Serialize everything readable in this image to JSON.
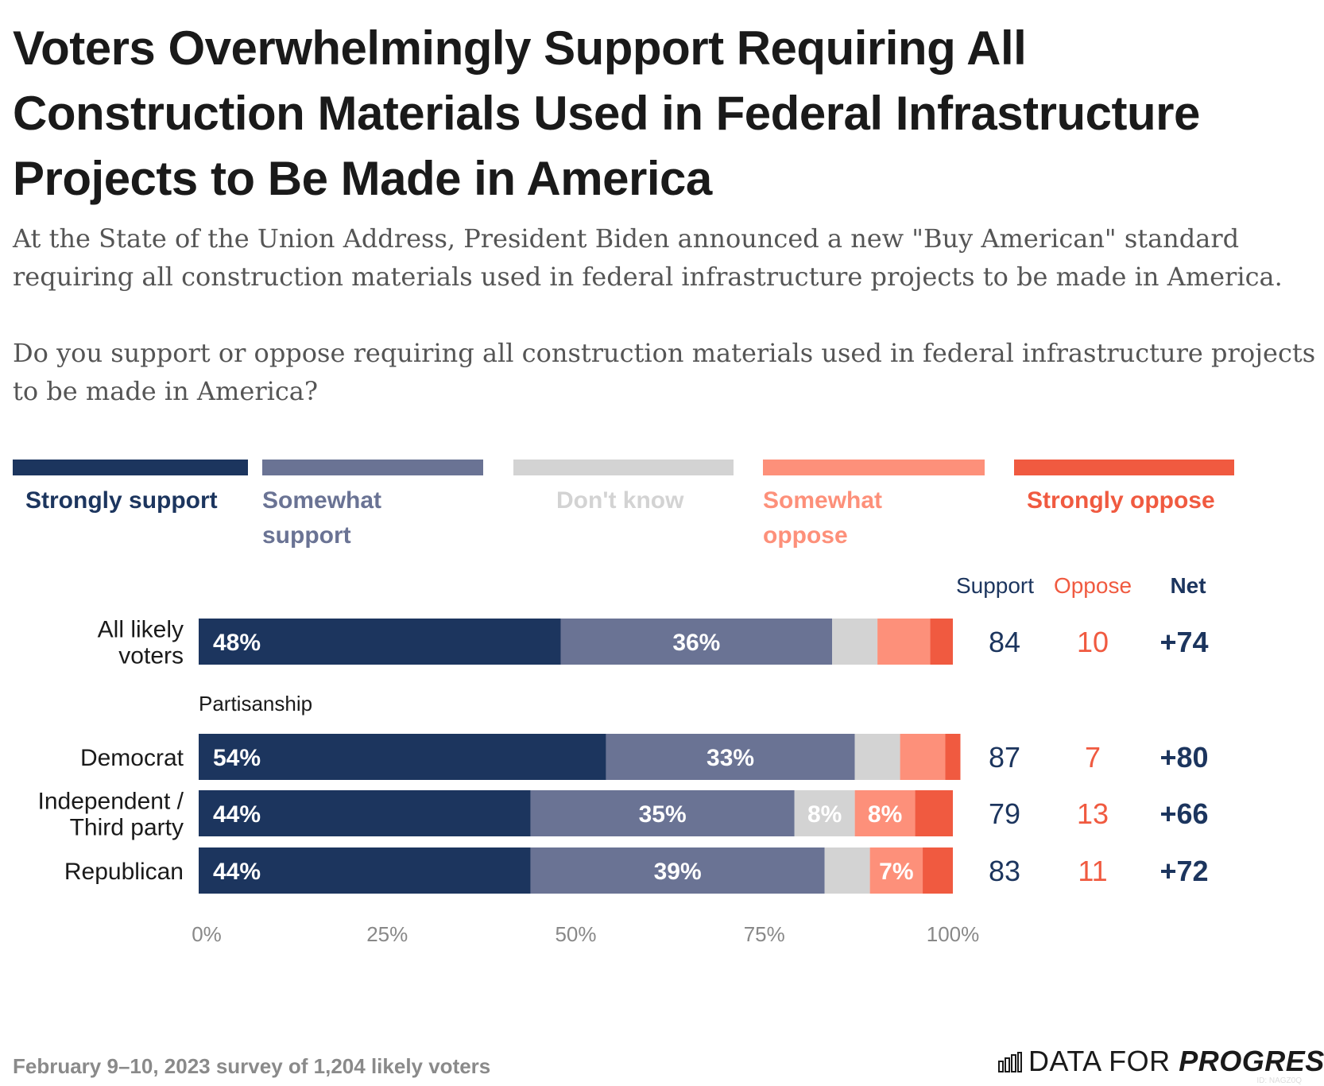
{
  "title": "Voters Overwhelmingly Support Requiring All Construction Materials Used in Federal Infrastructure Projects to Be Made in America",
  "subtitle": "At the State of the Union Address, President Biden announced a new \"Buy American\" standard requiring all construction materials used in federal infrastructure projects to be made in America.",
  "question": "Do you support or oppose requiring all construction materials used in federal infrastructure projects to be made in America?",
  "footer": "February 9–10, 2023 survey of 1,204 likely voters",
  "brand": {
    "light": "DATA FOR ",
    "bold": "PROGRESS",
    "id": "ID: NAGZ0Q"
  },
  "colors": {
    "strongly_support": "#1c355e",
    "somewhat_support": "#6a7394",
    "dont_know": "#d3d3d3",
    "somewhat_oppose": "#fd907a",
    "strongly_oppose": "#f05a40",
    "support_text": "#1c355e",
    "oppose_text": "#f05a40"
  },
  "legend": [
    {
      "key": "strongly_support",
      "label": "Strongly support"
    },
    {
      "key": "somewhat_support",
      "label": "Somewhat support"
    },
    {
      "key": "dont_know",
      "label": "Don't know"
    },
    {
      "key": "somewhat_oppose",
      "label": "Somewhat oppose"
    },
    {
      "key": "strongly_oppose",
      "label": "Strongly oppose"
    }
  ],
  "chart_data": {
    "type": "bar",
    "orientation": "horizontal",
    "stacked": true,
    "title": "Voters Overwhelmingly Support Requiring All Construction Materials Used in Federal Infrastructure Projects to Be Made in America",
    "xlim": [
      0,
      100
    ],
    "x_ticks": [
      "0%",
      "25%",
      "50%",
      "75%",
      "100%"
    ],
    "group_label": "Partisanship",
    "summary_headers": {
      "support": "Support",
      "oppose": "Oppose",
      "net": "Net"
    },
    "categories": [
      "All likely voters",
      "Democrat",
      "Independent / Third party",
      "Republican"
    ],
    "series": [
      {
        "name": "Strongly support",
        "key": "strongly_support",
        "values": [
          48,
          54,
          44,
          44
        ],
        "labels": [
          "48%",
          "54%",
          "44%",
          "44%"
        ]
      },
      {
        "name": "Somewhat support",
        "key": "somewhat_support",
        "values": [
          36,
          33,
          35,
          39
        ],
        "labels": [
          "36%",
          "33%",
          "35%",
          "39%"
        ]
      },
      {
        "name": "Don't know",
        "key": "dont_know",
        "values": [
          6,
          6,
          8,
          6
        ],
        "labels": [
          "",
          "",
          "8%",
          ""
        ]
      },
      {
        "name": "Somewhat oppose",
        "key": "somewhat_oppose",
        "values": [
          7,
          6,
          8,
          7
        ],
        "labels": [
          "",
          "",
          "8%",
          "7%"
        ]
      },
      {
        "name": "Strongly oppose",
        "key": "strongly_oppose",
        "values": [
          3,
          2,
          5,
          4
        ],
        "labels": [
          "",
          "",
          "",
          ""
        ]
      }
    ],
    "support": [
      "84",
      "87",
      "79",
      "83"
    ],
    "oppose": [
      "10",
      "7",
      "13",
      "11"
    ],
    "net": [
      "+74",
      "+80",
      "+66",
      "+72"
    ]
  }
}
